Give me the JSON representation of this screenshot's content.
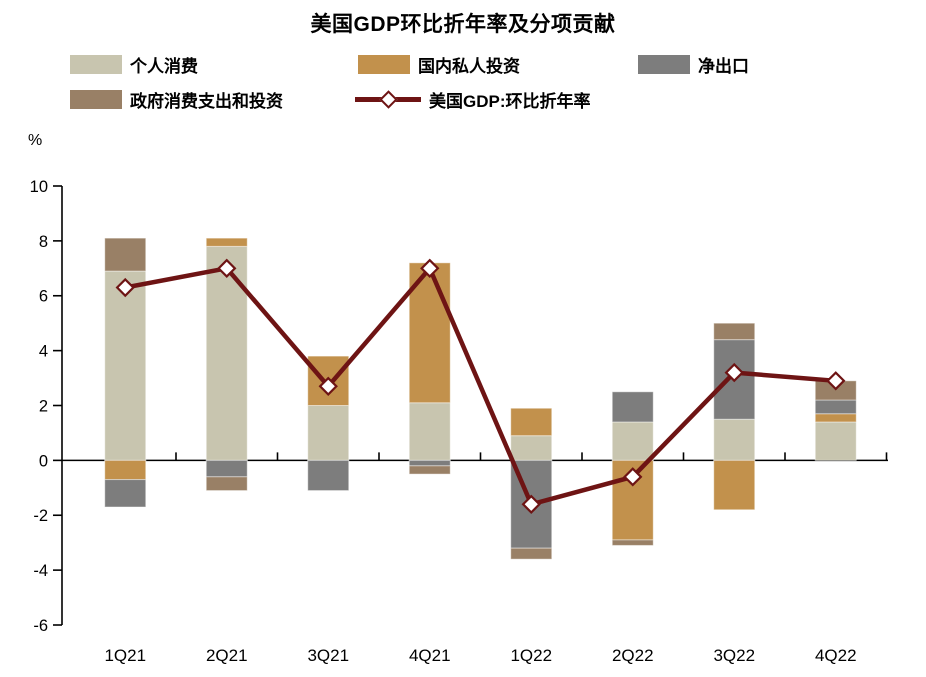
{
  "title": "美国GDP环比折年率及分项贡献",
  "y_axis": {
    "unit": "%"
  },
  "legend": {
    "items": [
      {
        "label": "个人消费",
        "color": "#C8C5AF",
        "type": "box"
      },
      {
        "label": "国内私人投资",
        "color": "#C2914C",
        "type": "box"
      },
      {
        "label": "净出口",
        "color": "#7D7D7D",
        "type": "box"
      },
      {
        "label": "政府消费支出和投资",
        "color": "#998066",
        "type": "box"
      },
      {
        "label": "美国GDP:环比折年率",
        "color": "#6E1414",
        "type": "line"
      }
    ]
  },
  "chart_data": {
    "type": "bar",
    "subtype": "stacked-bars-with-line-overlay",
    "title": "美国GDP环比折年率及分项贡献",
    "categories": [
      "1Q21",
      "2Q21",
      "3Q21",
      "4Q21",
      "1Q22",
      "2Q22",
      "3Q22",
      "4Q22"
    ],
    "series": [
      {
        "name": "个人消费",
        "color": "#C8C5AF",
        "values": [
          6.9,
          7.8,
          2.0,
          2.1,
          0.9,
          1.4,
          1.5,
          1.4
        ]
      },
      {
        "name": "国内私人投资",
        "color": "#C2914C",
        "values": [
          -0.7,
          0.3,
          1.8,
          5.1,
          1.0,
          -2.9,
          -1.8,
          0.3
        ]
      },
      {
        "name": "净出口",
        "color": "#7D7D7D",
        "values": [
          -1.0,
          -0.6,
          -1.1,
          -0.2,
          -3.2,
          1.1,
          2.9,
          0.5
        ]
      },
      {
        "name": "政府消费支出和投资",
        "color": "#998066",
        "values": [
          1.2,
          -0.5,
          0.0,
          -0.3,
          -0.4,
          -0.2,
          0.6,
          0.7
        ]
      }
    ],
    "line_series": {
      "name": "美国GDP:环比折年率",
      "color": "#6E1414",
      "marker": "diamond",
      "marker_fill": "#FFFFFF",
      "values": [
        6.3,
        7.0,
        2.7,
        7.0,
        -1.6,
        -0.6,
        3.2,
        2.9
      ]
    },
    "ylabel": "%",
    "ylim": [
      -6,
      10
    ],
    "yticks": [
      10,
      8,
      6,
      4,
      2,
      0,
      -2,
      -4,
      -6
    ],
    "grid": false,
    "legend_position": "top",
    "axis_color": "#000000"
  }
}
